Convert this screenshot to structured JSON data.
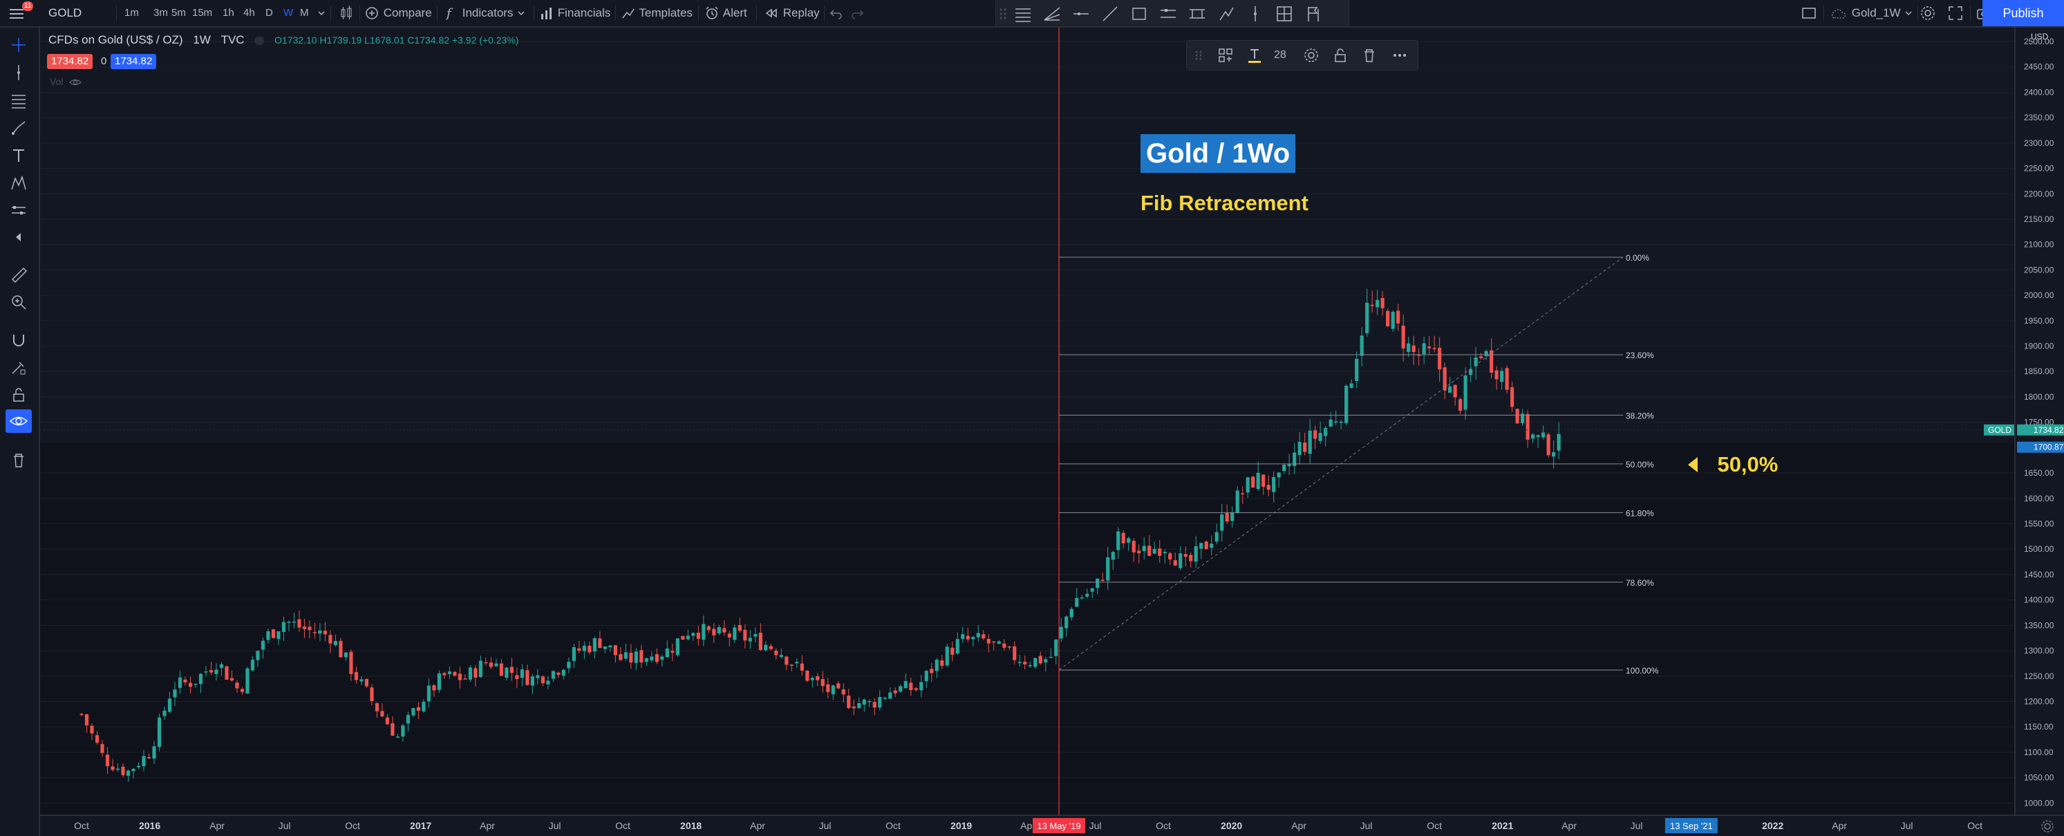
{
  "toolbar": {
    "notif_count": "11",
    "symbol": "GOLD",
    "intervals": [
      "1m",
      "3m",
      "5m",
      "15m",
      "1h",
      "4h",
      "D",
      "W",
      "M"
    ],
    "active_interval": "W",
    "compare": "Compare",
    "indicators": "Indicators",
    "financials": "Financials",
    "templates": "Templates",
    "alert": "Alert",
    "replay": "Replay",
    "layout_name": "Gold_1W",
    "publish": "Publish"
  },
  "legend": {
    "title": "CFDs on Gold (US$ / OZ)",
    "interval": "1W",
    "source": "TVC",
    "ohlc": "O1732.10 H1739.19 L1678.01 C1734.82 +3.92 (+0.23%)",
    "bid": "1734.82",
    "spread": "0",
    "ask": "1734.82",
    "vol": "Vol"
  },
  "float_toolbar": {
    "font_size": "28"
  },
  "annotations": {
    "title": "Gold / 1Wo",
    "subtitle": "Fib Retracement",
    "fifty": "50,0%"
  },
  "colors": {
    "up": "#26a69a",
    "down": "#ef5350",
    "accent": "#2962ff",
    "gold": "#f5d53d",
    "bg": "#131722"
  },
  "chart_data": {
    "type": "candlestick",
    "symbol": "GOLD",
    "ylim": [
      975,
      2530
    ],
    "price_ticks": [
      2500,
      2450,
      2400,
      2350,
      2300,
      2250,
      2200,
      2150,
      2100,
      2050,
      2000,
      1950,
      1900,
      1850,
      1800,
      1750,
      1650,
      1600,
      1550,
      1500,
      1450,
      1400,
      1350,
      1300,
      1250,
      1200,
      1150,
      1100,
      1050,
      1000
    ],
    "price_axis_label": "USD",
    "last_price": "1734.82",
    "last_price_label": "GOLD",
    "crosshair_price": "1700.87",
    "time_ticks": [
      "Oct",
      "2016",
      "Apr",
      "Jul",
      "Oct",
      "2017",
      "Apr",
      "Jul",
      "Oct",
      "2018",
      "Apr",
      "Jul",
      "Oct",
      "2019",
      "Apr",
      "13 May '19",
      "Jul",
      "Oct",
      "2020",
      "Apr",
      "Jul",
      "Oct",
      "2021",
      "Apr",
      "Jul",
      "13 Sep '21",
      "2022",
      "Apr",
      "Jul",
      "Oct"
    ],
    "fib_levels": [
      {
        "label": "0.00%",
        "price": 2075
      },
      {
        "label": "23.60%",
        "price": 1883
      },
      {
        "label": "38.20%",
        "price": 1764
      },
      {
        "label": "50.00%",
        "price": 1668
      },
      {
        "label": "61.80%",
        "price": 1572
      },
      {
        "label": "78.60%",
        "price": 1435
      },
      {
        "label": "100.00%",
        "price": 1262
      }
    ],
    "weekly_close_path": [
      [
        "2015-10",
        1175
      ],
      [
        "2015-11",
        1085
      ],
      [
        "2015-12",
        1060
      ],
      [
        "2016-01",
        1100
      ],
      [
        "2016-02",
        1230
      ],
      [
        "2016-03",
        1240
      ],
      [
        "2016-04",
        1280
      ],
      [
        "2016-05",
        1220
      ],
      [
        "2016-06",
        1320
      ],
      [
        "2016-07",
        1360
      ],
      [
        "2016-08",
        1340
      ],
      [
        "2016-09",
        1330
      ],
      [
        "2016-10",
        1260
      ],
      [
        "2016-11",
        1190
      ],
      [
        "2016-12",
        1130
      ],
      [
        "2017-01",
        1200
      ],
      [
        "2017-02",
        1250
      ],
      [
        "2017-03",
        1245
      ],
      [
        "2017-04",
        1280
      ],
      [
        "2017-05",
        1260
      ],
      [
        "2017-06",
        1245
      ],
      [
        "2017-07",
        1260
      ],
      [
        "2017-08",
        1300
      ],
      [
        "2017-09",
        1320
      ],
      [
        "2017-10",
        1280
      ],
      [
        "2017-11",
        1290
      ],
      [
        "2017-12",
        1300
      ],
      [
        "2018-01",
        1345
      ],
      [
        "2018-02",
        1330
      ],
      [
        "2018-03",
        1330
      ],
      [
        "2018-04",
        1320
      ],
      [
        "2018-05",
        1300
      ],
      [
        "2018-06",
        1255
      ],
      [
        "2018-07",
        1225
      ],
      [
        "2018-08",
        1200
      ],
      [
        "2018-09",
        1195
      ],
      [
        "2018-10",
        1225
      ],
      [
        "2018-11",
        1225
      ],
      [
        "2018-12",
        1280
      ],
      [
        "2019-01",
        1320
      ],
      [
        "2019-02",
        1320
      ],
      [
        "2019-03",
        1295
      ],
      [
        "2019-04",
        1280
      ],
      [
        "2019-05",
        1285
      ],
      [
        "2019-06",
        1400
      ],
      [
        "2019-07",
        1420
      ],
      [
        "2019-08",
        1520
      ],
      [
        "2019-09",
        1490
      ],
      [
        "2019-10",
        1510
      ],
      [
        "2019-11",
        1465
      ],
      [
        "2019-12",
        1515
      ],
      [
        "2020-01",
        1585
      ],
      [
        "2020-02",
        1640
      ],
      [
        "2020-03",
        1620
      ],
      [
        "2020-04",
        1700
      ],
      [
        "2020-05",
        1730
      ],
      [
        "2020-06",
        1780
      ],
      [
        "2020-07",
        1975
      ],
      [
        "2020-08",
        1960
      ],
      [
        "2020-09",
        1885
      ],
      [
        "2020-10",
        1880
      ],
      [
        "2020-11",
        1775
      ],
      [
        "2020-12",
        1895
      ],
      [
        "2021-01",
        1845
      ],
      [
        "2021-02",
        1730
      ],
      [
        "2021-03",
        1705
      ]
    ]
  }
}
